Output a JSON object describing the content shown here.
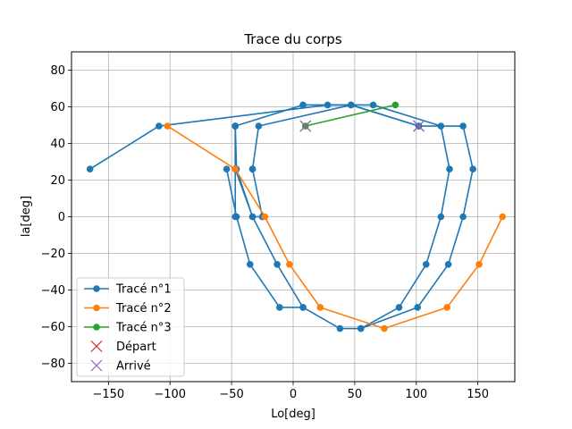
{
  "chart_data": {
    "type": "line",
    "title": "Trace du corps",
    "xlabel": "Lo[deg]",
    "ylabel": "la[deg]",
    "xlim": [
      -180,
      180
    ],
    "ylim": [
      -90,
      90
    ],
    "xticks": [
      -150,
      -100,
      -50,
      0,
      50,
      100,
      150
    ],
    "yticks": [
      -80,
      -60,
      -40,
      -20,
      0,
      20,
      40,
      60,
      80
    ],
    "xtick_labels": [
      "−150",
      "−100",
      "−50",
      "0",
      "50",
      "100",
      "150"
    ],
    "ytick_labels": [
      "−80",
      "−60",
      "−40",
      "−20",
      "0",
      "20",
      "40",
      "60",
      "80"
    ],
    "grid": true,
    "legend_position": "lower-left",
    "series": [
      {
        "name": "Tracé n°1",
        "color": "#1f77b4",
        "marker": "circle",
        "x": [
          -165,
          -109,
          28,
          65,
          120,
          127,
          120,
          108,
          86,
          55,
          38,
          8,
          -13,
          -33,
          -46,
          -47,
          -47,
          -47,
          -33,
          -25,
          -25
        ],
        "y": [
          26,
          49.5,
          61,
          61,
          49.5,
          26,
          0,
          -26,
          -49.5,
          -61,
          -61,
          -49.5,
          -26,
          0,
          26,
          49.5,
          49.5,
          26,
          0,
          0,
          0
        ]
      },
      {
        "name": "Tracé n°2",
        "color": "#ff7f0e",
        "marker": "circle",
        "x": [
          -102,
          -47,
          -23,
          -3,
          22,
          74,
          125,
          151,
          170
        ],
        "y": [
          49.5,
          26,
          0,
          -26,
          -49.5,
          -61,
          -49.5,
          -26,
          0
        ]
      },
      {
        "name": "Tracé n°3",
        "color": "#2ca02c",
        "marker": "circle",
        "x": [
          10,
          83
        ],
        "y": [
          49.5,
          61
        ]
      },
      {
        "name": "Départ",
        "color": "#d62728",
        "marker": "x",
        "x": [
          10,
          102
        ],
        "y": [
          49.5,
          49.5
        ]
      },
      {
        "name": "Arrivé",
        "color": "#9467bd",
        "marker": "x",
        "x": [
          10,
          102
        ],
        "y": [
          49.5,
          49.5
        ]
      }
    ],
    "extra_segments": [
      {
        "series": 0,
        "x": [
          -47,
          -47,
          8,
          47,
          102,
          138,
          146,
          138,
          126,
          101,
          55
        ],
        "y": [
          0,
          49.5,
          61,
          61,
          49.5,
          49.5,
          26,
          0,
          -26,
          -49.5,
          -61
        ]
      },
      {
        "series": 0,
        "x": [
          -25,
          -33,
          -33,
          -28,
          47,
          102
        ],
        "y": [
          0,
          26,
          26,
          49.5,
          61,
          49.5
        ]
      },
      {
        "series": 0,
        "x": [
          -54,
          -46,
          -35,
          -11,
          8
        ],
        "y": [
          26,
          0,
          -26,
          -49.5,
          -49.5
        ]
      }
    ]
  }
}
